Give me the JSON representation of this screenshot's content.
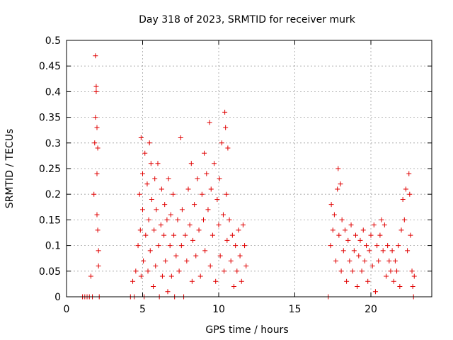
{
  "chart_data": {
    "type": "scatter",
    "title": "Day 318 of 2023, SRMTID for receiver murk",
    "xlabel": "GPS time / hours",
    "ylabel": "SRMTID / TECUs",
    "xlim": [
      0,
      24
    ],
    "ylim": [
      0,
      0.5
    ],
    "xticks": [
      0,
      5,
      10,
      15,
      20
    ],
    "xtick_labels": [
      "0",
      "5",
      "10",
      "15",
      "20"
    ],
    "yticks": [
      0,
      0.05,
      0.1,
      0.15,
      0.2,
      0.25,
      0.3,
      0.35,
      0.4,
      0.45,
      0.5
    ],
    "ytick_labels": [
      "0",
      "0.05",
      "0.1",
      "0.15",
      "0.2",
      "0.25",
      "0.3",
      "0.35",
      "0.4",
      "0.45",
      "0.5"
    ],
    "grid": true,
    "marker": "plus",
    "color": "#e00000",
    "series": [
      {
        "points": [
          [
            1.05,
            0.0
          ],
          [
            1.2,
            0.0
          ],
          [
            1.35,
            0.0
          ],
          [
            1.5,
            0.0
          ],
          [
            1.6,
            0.04
          ],
          [
            1.7,
            0.0
          ],
          [
            1.8,
            0.2
          ],
          [
            1.85,
            0.3
          ],
          [
            1.9,
            0.35
          ],
          [
            1.9,
            0.47
          ],
          [
            1.95,
            0.41
          ],
          [
            1.95,
            0.4
          ],
          [
            2.0,
            0.33
          ],
          [
            2.0,
            0.24
          ],
          [
            2.0,
            0.16
          ],
          [
            2.05,
            0.13
          ],
          [
            2.05,
            0.29
          ],
          [
            2.1,
            0.09
          ],
          [
            2.1,
            0.06
          ],
          [
            2.15,
            0.0
          ],
          [
            4.2,
            0.0
          ],
          [
            4.35,
            0.03
          ],
          [
            4.45,
            0.0
          ],
          [
            4.55,
            0.05
          ],
          [
            4.7,
            0.1
          ],
          [
            4.8,
            0.2
          ],
          [
            4.85,
            0.13
          ],
          [
            4.9,
            0.31
          ],
          [
            4.9,
            0.04
          ],
          [
            5.0,
            0.24
          ],
          [
            5.0,
            0.17
          ],
          [
            5.05,
            0.07
          ],
          [
            5.1,
            0.0
          ],
          [
            5.15,
            0.28
          ],
          [
            5.2,
            0.12
          ],
          [
            5.3,
            0.22
          ],
          [
            5.35,
            0.05
          ],
          [
            5.4,
            0.15
          ],
          [
            5.45,
            0.3
          ],
          [
            5.5,
            0.09
          ],
          [
            5.55,
            0.26
          ],
          [
            5.6,
            0.19
          ],
          [
            5.7,
            0.02
          ],
          [
            5.75,
            0.13
          ],
          [
            5.8,
            0.23
          ],
          [
            5.85,
            0.06
          ],
          [
            5.9,
            0.17
          ],
          [
            6.0,
            0.26
          ],
          [
            6.05,
            0.1
          ],
          [
            6.1,
            0.0
          ],
          [
            6.2,
            0.14
          ],
          [
            6.25,
            0.21
          ],
          [
            6.3,
            0.04
          ],
          [
            6.4,
            0.12
          ],
          [
            6.45,
            0.18
          ],
          [
            6.5,
            0.07
          ],
          [
            6.6,
            0.15
          ],
          [
            6.65,
            0.01
          ],
          [
            6.7,
            0.23
          ],
          [
            6.8,
            0.1
          ],
          [
            6.85,
            0.16
          ],
          [
            6.9,
            0.04
          ],
          [
            7.0,
            0.2
          ],
          [
            7.05,
            0.12
          ],
          [
            7.1,
            0.0
          ],
          [
            7.2,
            0.08
          ],
          [
            7.3,
            0.15
          ],
          [
            7.4,
            0.05
          ],
          [
            7.5,
            0.31
          ],
          [
            7.55,
            0.1
          ],
          [
            7.6,
            0.17
          ],
          [
            7.7,
            0.0
          ],
          [
            7.8,
            0.12
          ],
          [
            7.9,
            0.07
          ],
          [
            8.0,
            0.21
          ],
          [
            8.1,
            0.14
          ],
          [
            8.2,
            0.26
          ],
          [
            8.25,
            0.03
          ],
          [
            8.3,
            0.11
          ],
          [
            8.4,
            0.18
          ],
          [
            8.5,
            0.08
          ],
          [
            8.6,
            0.23
          ],
          [
            8.7,
            0.13
          ],
          [
            8.8,
            0.04
          ],
          [
            8.9,
            0.2
          ],
          [
            9.0,
            0.15
          ],
          [
            9.05,
            0.28
          ],
          [
            9.1,
            0.09
          ],
          [
            9.2,
            0.24
          ],
          [
            9.3,
            0.17
          ],
          [
            9.4,
            0.34
          ],
          [
            9.45,
            0.06
          ],
          [
            9.5,
            0.21
          ],
          [
            9.6,
            0.12
          ],
          [
            9.7,
            0.26
          ],
          [
            9.8,
            0.03
          ],
          [
            9.9,
            0.19
          ],
          [
            10.0,
            0.14
          ],
          [
            10.05,
            0.23
          ],
          [
            10.1,
            0.08
          ],
          [
            10.2,
            0.3
          ],
          [
            10.3,
            0.16
          ],
          [
            10.35,
            0.05
          ],
          [
            10.4,
            0.36
          ],
          [
            10.45,
            0.33
          ],
          [
            10.5,
            0.2
          ],
          [
            10.55,
            0.11
          ],
          [
            10.6,
            0.29
          ],
          [
            10.7,
            0.15
          ],
          [
            10.8,
            0.07
          ],
          [
            10.9,
            0.12
          ],
          [
            11.0,
            0.02
          ],
          [
            11.1,
            0.1
          ],
          [
            11.2,
            0.05
          ],
          [
            11.3,
            0.13
          ],
          [
            11.4,
            0.08
          ],
          [
            11.5,
            0.03
          ],
          [
            11.6,
            0.14
          ],
          [
            11.7,
            0.1
          ],
          [
            11.8,
            0.06
          ],
          [
            17.2,
            0.0
          ],
          [
            17.35,
            0.1
          ],
          [
            17.4,
            0.18
          ],
          [
            17.5,
            0.13
          ],
          [
            17.6,
            0.16
          ],
          [
            17.7,
            0.07
          ],
          [
            17.8,
            0.21
          ],
          [
            17.85,
            0.25
          ],
          [
            17.9,
            0.12
          ],
          [
            18.0,
            0.22
          ],
          [
            18.05,
            0.05
          ],
          [
            18.1,
            0.15
          ],
          [
            18.2,
            0.09
          ],
          [
            18.3,
            0.13
          ],
          [
            18.4,
            0.03
          ],
          [
            18.5,
            0.11
          ],
          [
            18.6,
            0.07
          ],
          [
            18.7,
            0.14
          ],
          [
            18.8,
            0.05
          ],
          [
            18.9,
            0.09
          ],
          [
            19.0,
            0.12
          ],
          [
            19.1,
            0.02
          ],
          [
            19.2,
            0.08
          ],
          [
            19.3,
            0.11
          ],
          [
            19.4,
            0.05
          ],
          [
            19.5,
            0.13
          ],
          [
            19.6,
            0.07
          ],
          [
            19.7,
            0.1
          ],
          [
            19.8,
            0.03
          ],
          [
            19.9,
            0.09
          ],
          [
            20.0,
            0.12
          ],
          [
            20.1,
            0.06
          ],
          [
            20.2,
            0.14
          ],
          [
            20.3,
            0.01
          ],
          [
            20.4,
            0.1
          ],
          [
            20.5,
            0.07
          ],
          [
            20.6,
            0.12
          ],
          [
            20.7,
            0.15
          ],
          [
            20.8,
            0.09
          ],
          [
            20.9,
            0.14
          ],
          [
            21.0,
            0.04
          ],
          [
            21.1,
            0.1
          ],
          [
            21.2,
            0.07
          ],
          [
            21.3,
            0.05
          ],
          [
            21.4,
            0.09
          ],
          [
            21.5,
            0.03
          ],
          [
            21.6,
            0.07
          ],
          [
            21.7,
            0.05
          ],
          [
            21.8,
            0.1
          ],
          [
            21.9,
            0.02
          ],
          [
            22.0,
            0.13
          ],
          [
            22.1,
            0.19
          ],
          [
            22.2,
            0.15
          ],
          [
            22.3,
            0.21
          ],
          [
            22.4,
            0.09
          ],
          [
            22.5,
            0.24
          ],
          [
            22.55,
            0.2
          ],
          [
            22.6,
            0.12
          ],
          [
            22.7,
            0.05
          ],
          [
            22.75,
            0.02
          ],
          [
            22.8,
            0.0
          ],
          [
            22.85,
            0.04
          ]
        ]
      }
    ]
  }
}
